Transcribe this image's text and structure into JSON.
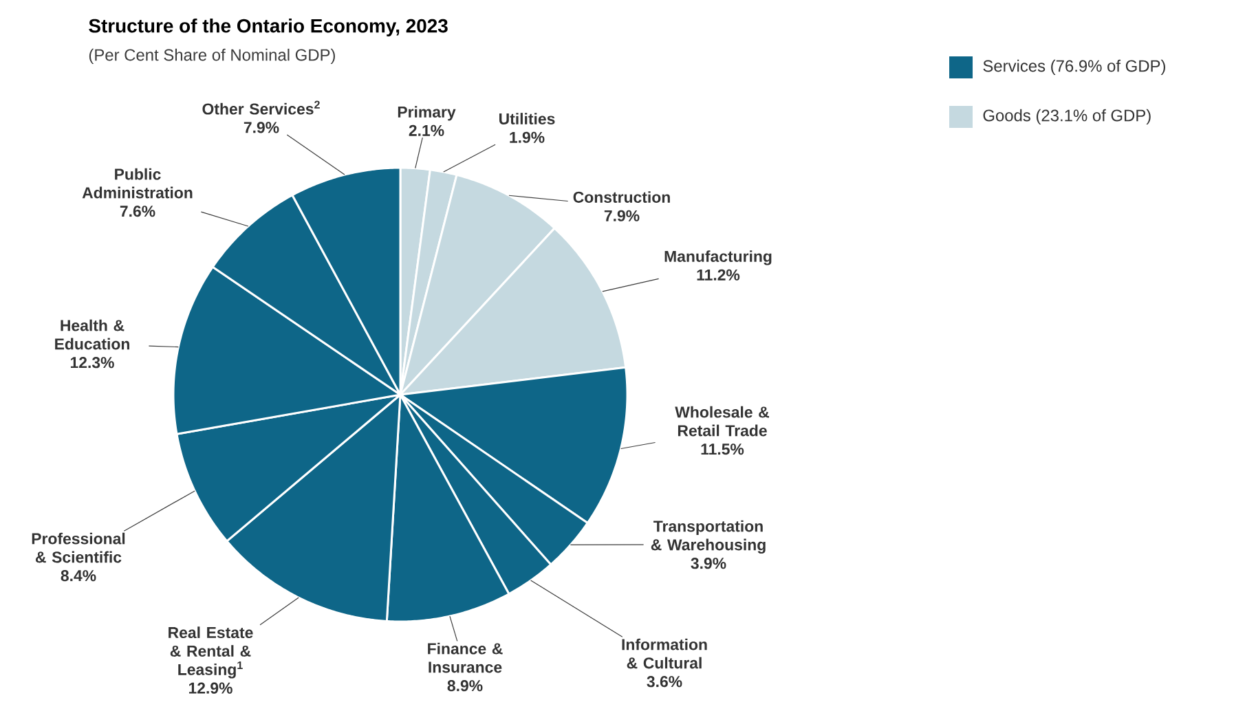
{
  "chart_data": {
    "type": "pie",
    "title": "Structure of the Ontario Economy, 2023",
    "subtitle": "(Per Cent Share of Nominal GDP)",
    "categories": [
      "Primary",
      "Utilities",
      "Construction",
      "Manufacturing",
      "Wholesale & Retail Trade",
      "Transportation & Warehousing",
      "Information & Cultural",
      "Finance & Insurance",
      "Real Estate & Rental & Leasing$^{1}$",
      "Professional & Scientific",
      "Health & Education",
      "Public Administration",
      "Other Services$^{2}$"
    ],
    "values": [
      2.1,
      1.9,
      7.9,
      11.2,
      11.5,
      3.9,
      3.6,
      8.9,
      12.9,
      8.4,
      12.3,
      7.6,
      7.9
    ],
    "value_labels": [
      "2.1%",
      "1.9%",
      "7.9%",
      "11.2%",
      "11.5%",
      "3.9%",
      "3.6%",
      "8.9%",
      "12.9%",
      "8.4%",
      "12.3%",
      "7.6%",
      "7.9%"
    ],
    "colors": [
      "#c5d9e0",
      "#c5d9e0",
      "#c5d9e0",
      "#c5d9e0",
      "#0e6688",
      "#0e6688",
      "#0e6688",
      "#0e6688",
      "#0e6688",
      "#0e6688",
      "#0e6688",
      "#0e6688",
      "#0e6688"
    ],
    "annotations": [
      "Services (76.9% of GDP)",
      "Goods (23.1% of GDP)"
    ]
  }
}
